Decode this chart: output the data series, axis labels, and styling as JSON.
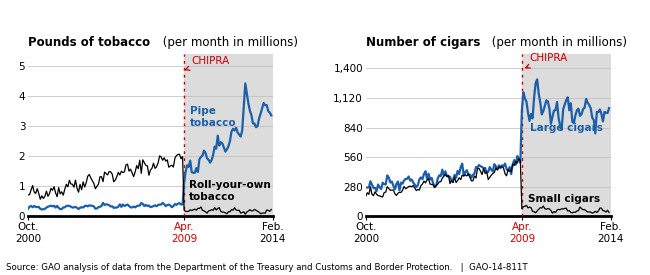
{
  "left_title_bold": "Pounds of tobacco",
  "left_title_normal": " (per month in millions)",
  "right_title_bold": "Number of cigars",
  "right_title_normal": " (per month in millions)",
  "source_text": "Source: GAO analysis of data from the Department of the Treasury and Customs and Border Protection.   |  GAO-14-811T",
  "left_ylabel_values": [
    0,
    1,
    2,
    3,
    4,
    5
  ],
  "left_ylabel_labels": [
    "0",
    "1",
    "2",
    "3",
    "4",
    "5"
  ],
  "right_ylabel_values": [
    0,
    280,
    560,
    840,
    1120,
    1400
  ],
  "right_ylabel_labels": [
    "0",
    "280",
    "560",
    "840",
    "1,120",
    "1,400"
  ],
  "n_months_pre": 102,
  "n_months_post": 58,
  "blue_color": "#1B5FAA",
  "black_color": "#000000",
  "red_color": "#CC0000",
  "gray_bg": "#DCDCDC",
  "left_ylim": [
    0,
    5.4
  ],
  "right_ylim": [
    0,
    1540
  ]
}
